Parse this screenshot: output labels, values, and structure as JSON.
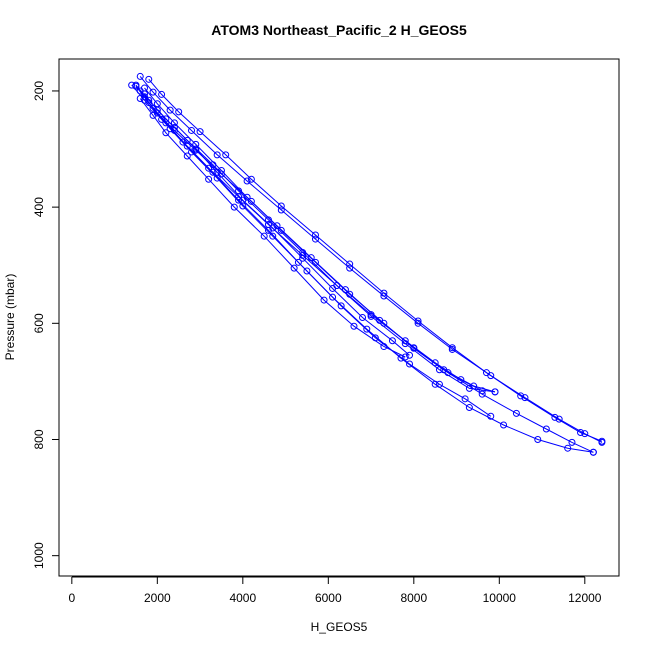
{
  "chart_data": {
    "type": "line",
    "title": "ATOM3 Northeast_Pacific_2 H_GEOS5",
    "xlabel": "H_GEOS5",
    "ylabel": "Pressure (mbar)",
    "xlim": [
      -300,
      12800
    ],
    "ylim": [
      1035,
      145
    ],
    "y_reversed": true,
    "grid": false,
    "marker": "open-circle",
    "color": "#0000ff",
    "x_ticks": [
      0,
      2000,
      4000,
      6000,
      8000,
      10000,
      12000
    ],
    "y_ticks": [
      200,
      400,
      600,
      800,
      1000
    ],
    "series": [
      {
        "x": [
          1600,
          1900,
          2300,
          2800,
          3400,
          4000,
          4700,
          5500,
          6300,
          7100,
          7900,
          8600,
          9200,
          9800
        ],
        "y": [
          200,
          230,
          265,
          305,
          350,
          398,
          450,
          510,
          570,
          625,
          670,
          705,
          730,
          760
        ]
      },
      {
        "x": [
          1500,
          1800,
          2200,
          2700,
          3300,
          3900,
          4600,
          5300,
          6100,
          6900,
          7700,
          8500,
          9300,
          10100,
          10900,
          11600,
          12200
        ],
        "y": [
          192,
          220,
          255,
          295,
          340,
          388,
          440,
          495,
          555,
          610,
          660,
          705,
          745,
          775,
          800,
          815,
          822
        ]
      },
      {
        "x": [
          1700,
          2000,
          2400,
          2900,
          3500,
          4100,
          4800,
          5600,
          6400,
          7200,
          8000,
          8800,
          9600,
          10400,
          11100,
          11700,
          12200
        ],
        "y": [
          195,
          222,
          255,
          292,
          337,
          383,
          432,
          487,
          542,
          595,
          642,
          685,
          722,
          755,
          782,
          805,
          822
        ]
      },
      {
        "x": [
          1600,
          1900,
          2300,
          2800,
          3400,
          4100,
          4900,
          5700,
          6500,
          7300,
          8100,
          8900,
          9800,
          10600,
          11400,
          12000,
          12400
        ],
        "y": [
          175,
          202,
          233,
          268,
          310,
          355,
          405,
          455,
          505,
          553,
          600,
          645,
          690,
          728,
          765,
          790,
          805
        ]
      },
      {
        "x": [
          1800,
          2100,
          2500,
          3000,
          3600,
          4200,
          4900,
          5700,
          6500,
          7300,
          8100,
          8900,
          9700,
          10500,
          11300,
          11900,
          12400
        ],
        "y": [
          180,
          206,
          236,
          270,
          310,
          352,
          398,
          448,
          498,
          548,
          596,
          642,
          685,
          725,
          762,
          788,
          803
        ]
      },
      {
        "x": [
          1500,
          1800,
          2200,
          2700,
          3300,
          3900,
          4600,
          5400,
          6200,
          7000,
          7800,
          8600,
          9300,
          9900
        ],
        "y": [
          190,
          216,
          248,
          285,
          327,
          372,
          422,
          478,
          535,
          588,
          635,
          680,
          712,
          718
        ]
      },
      {
        "x": [
          1400,
          1700,
          2100,
          2600,
          3200,
          3900,
          4600,
          5400,
          6200,
          7000,
          7800,
          8500,
          9100,
          9600
        ],
        "y": [
          190,
          216,
          249,
          288,
          333,
          382,
          430,
          483,
          535,
          585,
          630,
          668,
          697,
          716
        ]
      },
      {
        "x": [
          1700,
          2000,
          2400,
          2900,
          3500,
          4200,
          4900,
          5700,
          6500,
          7300,
          8000,
          8700,
          9400,
          9900
        ],
        "y": [
          210,
          238,
          268,
          302,
          343,
          390,
          440,
          495,
          550,
          600,
          643,
          680,
          708,
          718
        ]
      },
      {
        "x": [
          1600,
          1900,
          2200,
          2700,
          3200,
          3800,
          4500,
          5200,
          5900,
          6600,
          7300,
          7800
        ],
        "y": [
          213,
          242,
          272,
          312,
          352,
          400,
          450,
          505,
          560,
          605,
          640,
          658
        ]
      },
      {
        "x": [
          1700,
          2000,
          2400,
          2900,
          3400,
          4000,
          4700,
          5400,
          6100,
          6800,
          7500,
          7900
        ],
        "y": [
          205,
          233,
          263,
          300,
          340,
          388,
          436,
          488,
          540,
          590,
          630,
          655
        ]
      }
    ]
  }
}
